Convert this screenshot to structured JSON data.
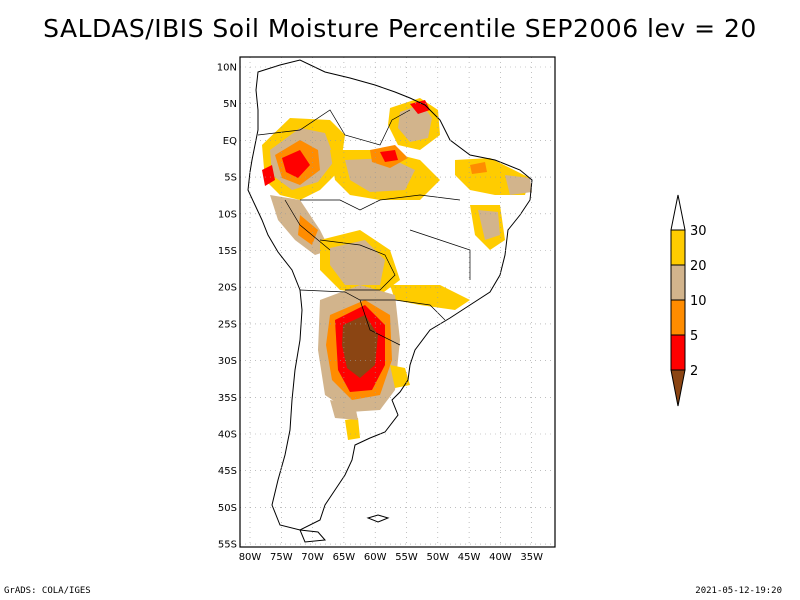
{
  "title": "SALDAS/IBIS Soil Moisture Percentile SEP2006 lev = 20",
  "footer": {
    "left": "GrADS: COLA/IGES",
    "right": "2021-05-12-19:20"
  },
  "map": {
    "lat_labels": [
      "10N",
      "5N",
      "EQ",
      "5S",
      "10S",
      "15S",
      "20S",
      "25S",
      "30S",
      "35S",
      "40S",
      "45S",
      "50S",
      "55S"
    ],
    "lon_labels": [
      "80W",
      "75W",
      "70W",
      "65W",
      "60W",
      "55W",
      "50W",
      "45W",
      "40W",
      "35W"
    ],
    "grid": true,
    "region": "South America"
  },
  "colorbar": {
    "labels": [
      "30",
      "20",
      "10",
      "5",
      "2"
    ],
    "colors": {
      "above_30": "#ffffff",
      "20_30": "#ffcc00",
      "10_20": "#d2b48c",
      "5_10": "#ff8c00",
      "2_5": "#ff0000",
      "below_2": "#8b4513"
    }
  },
  "colors": {
    "coast": "#000000",
    "grid": "#999999",
    "background": "#ffffff"
  }
}
